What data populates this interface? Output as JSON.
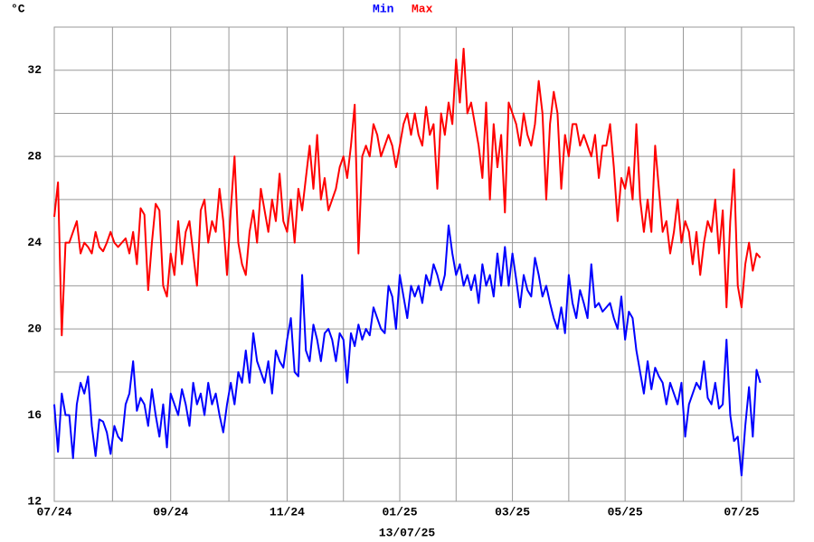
{
  "chart_data": {
    "type": "line",
    "y_label": "°C",
    "x_label": "13/07/25",
    "ylim": [
      12,
      34
    ],
    "yticks": [
      12,
      16,
      20,
      24,
      28,
      32
    ],
    "grid": true,
    "categories": [
      "07/24",
      null,
      null,
      null,
      null,
      null,
      null,
      null,
      null,
      null,
      null,
      null,
      null,
      null,
      null,
      null,
      null,
      null,
      null,
      null,
      null,
      null,
      null,
      null,
      null,
      null,
      null,
      null,
      null,
      null,
      null,
      "09/24",
      null,
      null,
      null,
      null,
      null,
      null,
      null,
      null,
      null,
      null,
      null,
      null,
      null,
      null,
      null,
      null,
      null,
      null,
      null,
      null,
      null,
      null,
      null,
      null,
      null,
      null,
      null,
      null,
      null,
      null,
      "11/24",
      null,
      null,
      null,
      null,
      null,
      null,
      null,
      null,
      null,
      null,
      null,
      null,
      null,
      null,
      null,
      null,
      null,
      null,
      null,
      null,
      null,
      null,
      null,
      null,
      null,
      null,
      null,
      null,
      null,
      "01/25",
      null,
      null,
      null,
      null,
      null,
      null,
      null,
      null,
      null,
      null,
      null,
      null,
      null,
      null,
      null,
      null,
      null,
      null,
      null,
      null,
      null,
      null,
      null,
      null,
      null,
      null,
      null,
      null,
      null,
      "03/25",
      null,
      null,
      null,
      null,
      null,
      null,
      null,
      null,
      null,
      null,
      null,
      null,
      null,
      null,
      null,
      null,
      null,
      null,
      null,
      null,
      null,
      null,
      null,
      null,
      null,
      null,
      null,
      null,
      null,
      "05/25",
      null,
      null,
      null,
      null,
      null,
      null,
      null,
      null,
      null,
      null,
      null,
      null,
      null,
      null,
      null,
      null,
      null,
      null,
      null,
      null,
      null,
      null,
      null,
      null,
      null,
      null,
      null,
      null,
      null,
      null,
      "07/25",
      null,
      null,
      null,
      null,
      null,
      null,
      null,
      null,
      null,
      null,
      null,
      null,
      null,
      null
    ],
    "series": [
      {
        "name": "Min",
        "color": "#0000ff",
        "values": [
          16.5,
          14.3,
          17,
          16,
          16,
          14,
          16.5,
          17.5,
          17,
          17.8,
          15.5,
          14.1,
          15.8,
          15.7,
          15.2,
          14.2,
          15.5,
          15,
          14.8,
          16.5,
          17,
          18.5,
          16.2,
          16.8,
          16.5,
          15.5,
          17.2,
          16,
          15,
          16.5,
          14.5,
          17,
          16.5,
          16,
          17.2,
          16.5,
          15.5,
          17.5,
          16.5,
          17,
          16,
          17.5,
          16.5,
          17,
          16,
          15.2,
          16.5,
          17.5,
          16.5,
          18,
          17.5,
          19,
          17.5,
          19.8,
          18.5,
          18,
          17.5,
          18.5,
          17,
          19,
          18.5,
          18.2,
          19.5,
          20.5,
          18,
          17.8,
          22.5,
          19,
          18.5,
          20.2,
          19.5,
          18.5,
          19.8,
          20,
          19.5,
          18.5,
          19.8,
          19.5,
          17.5,
          19.8,
          19.2,
          20.2,
          19.5,
          20,
          19.7,
          21,
          20.5,
          20,
          19.8,
          22,
          21.5,
          20,
          22.5,
          21.5,
          20.5,
          22,
          21.5,
          22,
          21.2,
          22.5,
          22,
          23,
          22.5,
          21.8,
          22.5,
          24.8,
          23.5,
          22.5,
          23,
          22,
          22.5,
          21.8,
          22.5,
          21.2,
          23,
          22,
          22.5,
          21.5,
          23.5,
          22,
          23.8,
          22,
          23.5,
          22.3,
          21,
          22.5,
          21.8,
          21.5,
          23.3,
          22.5,
          21.5,
          22,
          21.2,
          20.5,
          20,
          21,
          19.8,
          22.5,
          21.2,
          20.5,
          21.8,
          21.2,
          20.5,
          23,
          21,
          21.2,
          20.8,
          21,
          21.2,
          20.5,
          20,
          21.5,
          19.5,
          20.8,
          20.5,
          19,
          18,
          17,
          18.5,
          17.2,
          18.2,
          17.8,
          17.5,
          16.5,
          17.5,
          17,
          16.5,
          17.5,
          15,
          16.5,
          17,
          17.5,
          17.2,
          18.5,
          16.8,
          16.5,
          17.5,
          16.3,
          16.5,
          19.5,
          16,
          14.8,
          15,
          13.2,
          15.5,
          17.3,
          15,
          18.1,
          17.5,
          null,
          null,
          null,
          null,
          null,
          null,
          null,
          null,
          null
        ]
      },
      {
        "name": "Max",
        "color": "#ff0000",
        "values": [
          25.2,
          26.8,
          19.7,
          24,
          24,
          24.5,
          25,
          23.5,
          24,
          23.8,
          23.5,
          24.5,
          23.8,
          23.6,
          24,
          24.5,
          24,
          23.8,
          24,
          24.2,
          23.5,
          24.5,
          23,
          25.6,
          25.3,
          21.8,
          24,
          25.8,
          25.5,
          22,
          21.5,
          23.5,
          22.5,
          25,
          23,
          24.5,
          25,
          23.5,
          22,
          25.5,
          26,
          24,
          25,
          24.5,
          26.5,
          25,
          22.5,
          25.5,
          28,
          24,
          23,
          22.5,
          24.5,
          25.5,
          24,
          26.5,
          25.5,
          24.5,
          26,
          25,
          27.2,
          25,
          24.5,
          26,
          24,
          26.5,
          25.5,
          27,
          28.5,
          26.5,
          29,
          26,
          27,
          25.5,
          26,
          26.5,
          27.5,
          28,
          27,
          28.5,
          30.4,
          23.5,
          28,
          28.5,
          28,
          29.5,
          29,
          28,
          28.5,
          29,
          28.5,
          27.5,
          28.5,
          29.5,
          30,
          29,
          30,
          29,
          28.5,
          30.3,
          29,
          29.5,
          26.5,
          30,
          29,
          30.5,
          29.5,
          32.5,
          30.5,
          33,
          30,
          30.5,
          29.5,
          28.5,
          27,
          30.5,
          26,
          29.5,
          27.5,
          29,
          25.4,
          30.5,
          30,
          29.5,
          28.5,
          30,
          29,
          28.5,
          29.5,
          31.5,
          30,
          26,
          29.5,
          31,
          30,
          26.5,
          29,
          28,
          29.5,
          29.5,
          28.5,
          29,
          28.5,
          28,
          29,
          27,
          28.5,
          28.5,
          29.5,
          27.5,
          25,
          27,
          26.5,
          27.5,
          26,
          29.5,
          26,
          24.5,
          26,
          24.5,
          28.5,
          26.5,
          24.5,
          25,
          23.5,
          24.5,
          26,
          24,
          25,
          24.5,
          23,
          24.5,
          22.5,
          24,
          25,
          24.5,
          26,
          23.5,
          25.5,
          21,
          25,
          27.4,
          22,
          21,
          23,
          24,
          22.7,
          23.5,
          23.3,
          null,
          null,
          null,
          null,
          null,
          null,
          null,
          null,
          null
        ]
      }
    ]
  }
}
